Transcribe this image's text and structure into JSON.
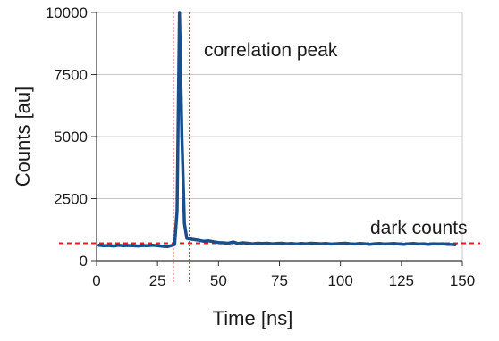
{
  "chart_data": {
    "type": "line",
    "title": "",
    "xlabel": "Time [ns]",
    "ylabel": "Counts [au]",
    "xlim": [
      0,
      150
    ],
    "ylim": [
      0,
      10000
    ],
    "x_ticks": [
      0,
      25,
      50,
      75,
      100,
      125,
      150
    ],
    "y_ticks": [
      0,
      2500,
      5000,
      7500,
      10000
    ],
    "grid": "horizontal",
    "colors": {
      "series": "#1a4f8a",
      "reference_lines": "#e02020",
      "grid": "#c8c8c8"
    },
    "series": [
      {
        "name": "",
        "x": [
          1,
          3,
          5,
          7,
          9,
          11,
          13,
          15,
          17,
          19,
          21,
          23,
          25,
          27,
          29,
          31,
          32,
          33,
          34,
          35,
          36,
          37,
          38,
          40,
          42,
          44,
          46,
          48,
          50,
          52,
          54,
          56,
          58,
          60,
          62,
          64,
          66,
          68,
          70,
          72,
          74,
          76,
          78,
          80,
          82,
          84,
          86,
          88,
          90,
          92,
          94,
          96,
          98,
          100,
          102,
          104,
          106,
          108,
          110,
          112,
          114,
          116,
          118,
          120,
          122,
          124,
          126,
          128,
          130,
          132,
          134,
          136,
          138,
          140,
          142,
          144,
          146,
          147
        ],
        "y": [
          620,
          600,
          610,
          590,
          620,
          600,
          610,
          600,
          590,
          610,
          600,
          620,
          600,
          580,
          560,
          620,
          650,
          2000,
          10000,
          5000,
          1500,
          900,
          880,
          850,
          820,
          780,
          800,
          760,
          730,
          720,
          700,
          750,
          690,
          720,
          700,
          680,
          700,
          690,
          700,
          680,
          690,
          700,
          680,
          690,
          670,
          690,
          680,
          700,
          690,
          680,
          690,
          670,
          680,
          690,
          700,
          680,
          670,
          690,
          680,
          660,
          680,
          690,
          670,
          680,
          690,
          670,
          660,
          680,
          690,
          670,
          680,
          660,
          680,
          670,
          680,
          660,
          650,
          640
        ]
      }
    ],
    "annotations": [
      {
        "text": "correlation peak"
      },
      {
        "text": "dark counts"
      }
    ],
    "reference_lines": [
      {
        "orientation": "horizontal",
        "value": 700,
        "style": "dashed"
      },
      {
        "orientation": "vertical",
        "value": 31.5,
        "style": "dotted"
      },
      {
        "orientation": "vertical",
        "value": 38,
        "style": "dotted"
      }
    ]
  }
}
